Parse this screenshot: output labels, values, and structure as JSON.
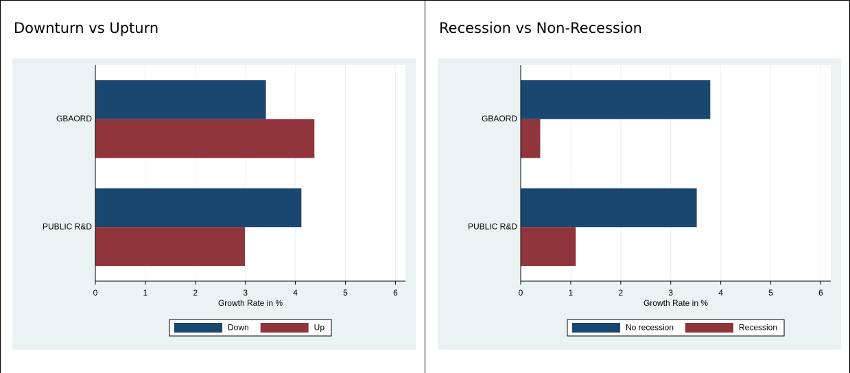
{
  "chart_data": [
    {
      "type": "bar",
      "horizontal": true,
      "title": "Downturn vs Upturn",
      "categories": [
        "GBAORD",
        "PUBLIC R&D"
      ],
      "series": [
        {
          "name": "Down",
          "color": "#1a476f",
          "values": [
            3.41,
            4.12
          ]
        },
        {
          "name": "Up",
          "color": "#90353b",
          "values": [
            4.38,
            2.99
          ]
        }
      ],
      "xlim": [
        0,
        6.2
      ],
      "xticks": [
        0,
        1,
        2,
        3,
        4,
        5,
        6
      ],
      "x_label": "Growth Rate in %",
      "grid": true,
      "legend": "bottom"
    },
    {
      "type": "bar",
      "horizontal": true,
      "title": "Recession vs Non-Recession",
      "categories": [
        "GBAORD",
        "PUBLIC R&D"
      ],
      "series": [
        {
          "name": "No recession",
          "color": "#1a476f",
          "values": [
            3.79,
            3.52
          ]
        },
        {
          "name": "Recession",
          "color": "#90353b",
          "values": [
            0.39,
            1.1
          ]
        }
      ],
      "xlim": [
        0,
        6.2
      ],
      "xticks": [
        0,
        1,
        2,
        3,
        4,
        5,
        6
      ],
      "x_label": "Growth Rate in %",
      "grid": true,
      "legend": "bottom"
    }
  ]
}
